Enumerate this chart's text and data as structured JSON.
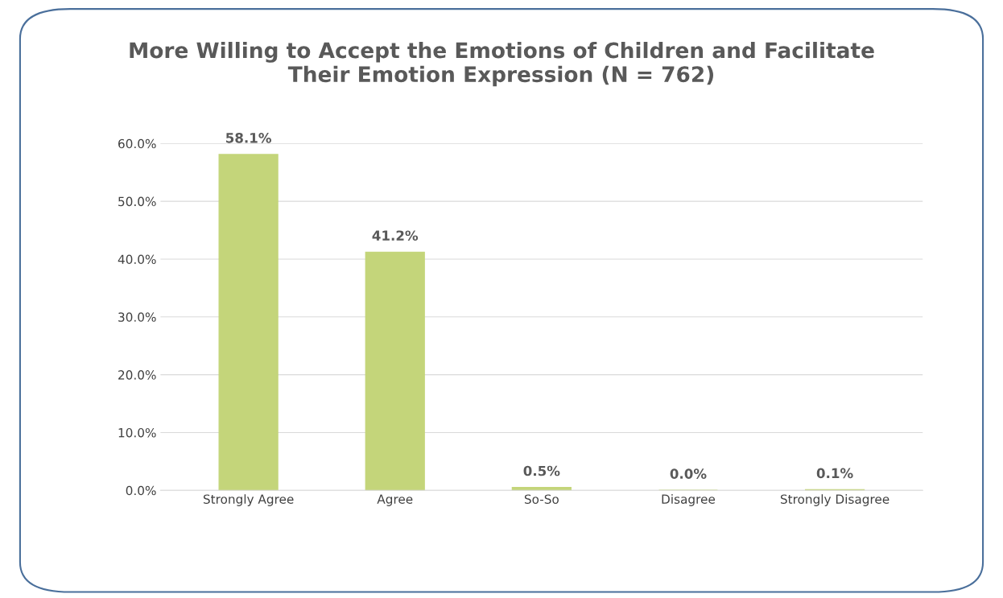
{
  "chart_data": {
    "type": "bar",
    "title": "More Willing to Accept the Emotions of Children and Facilitate\nTheir Emotion Expression (N = 762)",
    "categories": [
      "Strongly Agree",
      "Agree",
      "So-So",
      "Disagree",
      "Strongly Disagree"
    ],
    "values": [
      58.1,
      41.2,
      0.5,
      0.0,
      0.1
    ],
    "value_labels": [
      "58.1%",
      "41.2%",
      "0.5%",
      "0.0%",
      "0.1%"
    ],
    "color": "#c4d57a",
    "ylim": [
      0,
      60
    ],
    "yticks": [
      {
        "value": 0,
        "label": "0.0%"
      },
      {
        "value": 10,
        "label": "10.0%"
      },
      {
        "value": 20,
        "label": "20.0%"
      },
      {
        "value": 30,
        "label": "30.0%"
      },
      {
        "value": 40,
        "label": "40.0%"
      },
      {
        "value": 50,
        "label": "50.0%"
      },
      {
        "value": 60,
        "label": "60.0%"
      }
    ],
    "grid": "y"
  }
}
